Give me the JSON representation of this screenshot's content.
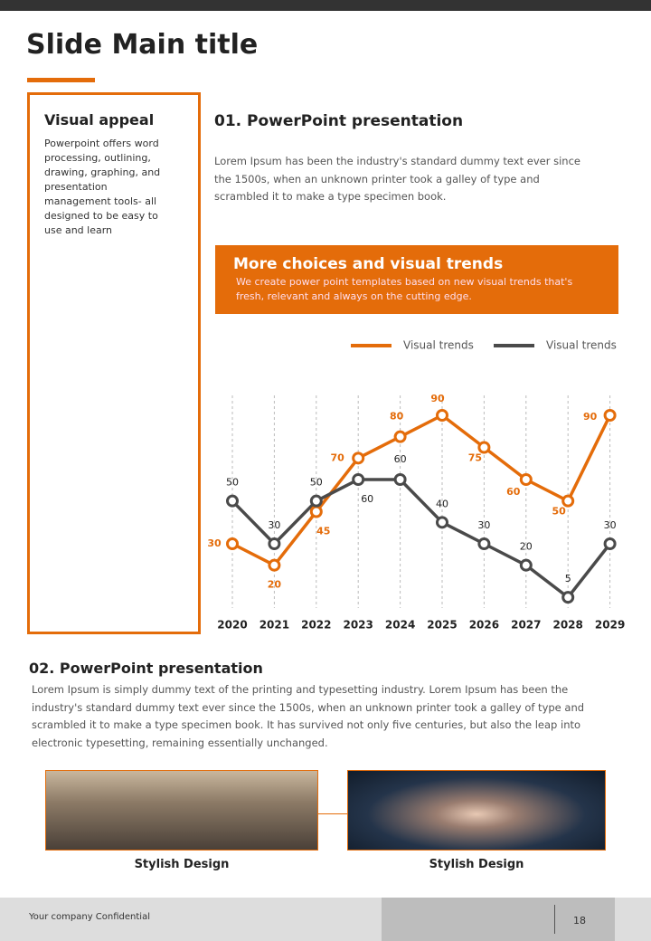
{
  "header": {
    "title": "Slide Main title"
  },
  "sidebar": {
    "heading": "Visual appeal",
    "text": "Powerpoint offers word processing, outlining, drawing, graphing, and presentation management tools- all designed to be easy to use and learn"
  },
  "section1": {
    "heading": "01. PowerPoint presentation",
    "text": "Lorem Ipsum has been the industry's standard dummy text ever since the 1500s, when an unknown printer took a galley of type and scrambled it to make a type specimen book."
  },
  "banner": {
    "title": "More choices and visual trends",
    "text": "We create power point templates based on new visual trends that's fresh, relevant and always on the cutting edge."
  },
  "chart_data": {
    "type": "line",
    "categories": [
      "2020",
      "2021",
      "2022",
      "2023",
      "2024",
      "2025",
      "2026",
      "2027",
      "2028",
      "2029"
    ],
    "series": [
      {
        "name": "Visual trends",
        "color": "#e46c0a",
        "values": [
          30,
          20,
          45,
          70,
          80,
          90,
          75,
          60,
          50,
          90
        ]
      },
      {
        "name": "Visual trends",
        "color": "#4a4a4a",
        "values": [
          50,
          30,
          50,
          60,
          60,
          40,
          30,
          20,
          5,
          30
        ]
      }
    ],
    "ylim": [
      0,
      90
    ],
    "legend": "top-right"
  },
  "section2": {
    "heading": "02. PowerPoint presentation",
    "text": "Lorem Ipsum is simply dummy text of the printing and typesetting industry. Lorem Ipsum has been the industry's standard dummy text ever since the 1500s, when an unknown printer took a galley of type and scrambled it to make a type specimen book. It has survived not only five centuries, but also the leap into electronic typesetting, remaining essentially unchanged."
  },
  "images": [
    {
      "caption": "Stylish Design"
    },
    {
      "caption": "Stylish Design"
    }
  ],
  "footer": {
    "text": "Your company Confidential",
    "page": "18"
  }
}
